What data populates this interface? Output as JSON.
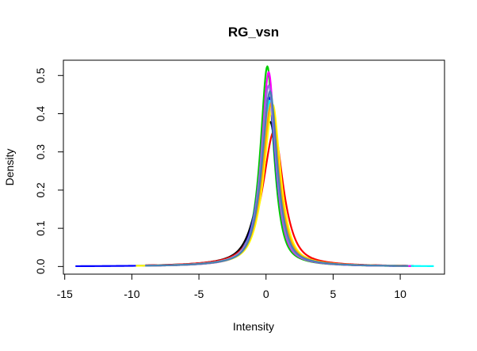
{
  "chart_data": {
    "type": "line",
    "title": "RG_vsn",
    "xlabel": "Intensity",
    "ylabel": "Density",
    "xlim": [
      -15.1,
      13.3
    ],
    "ylim": [
      -0.02,
      0.54
    ],
    "xticks": [
      -15,
      -10,
      -5,
      0,
      5,
      10
    ],
    "xtick_labels": [
      "-15",
      "-10",
      "-5",
      "0",
      "5",
      "10"
    ],
    "yticks": [
      0.0,
      0.1,
      0.2,
      0.3,
      0.4,
      0.5
    ],
    "ytick_labels": [
      "0.0",
      "0.1",
      "0.2",
      "0.3",
      "0.4",
      "0.5"
    ],
    "grid": false,
    "legend": "none",
    "series": [
      {
        "color": "#000000",
        "xmin": -9.0,
        "xmax": 11.0,
        "peak": 0.375,
        "peak_x": 0.3,
        "width_left": 1.0,
        "width_right": 0.85
      },
      {
        "color": "#ff0000",
        "xmin": -9.0,
        "xmax": 10.5,
        "peak": 0.35,
        "peak_x": 0.6,
        "width_left": 1.1,
        "width_right": 0.9
      },
      {
        "color": "#00cd00",
        "xmin": -9.0,
        "xmax": 10.6,
        "peak": 0.52,
        "peak_x": 0.1,
        "width_left": 0.68,
        "width_right": 0.62
      },
      {
        "color": "#0000ff",
        "xmin": -14.2,
        "xmax": 10.8,
        "peak": 0.44,
        "peak_x": 0.2,
        "width_left": 0.8,
        "width_right": 0.7
      },
      {
        "color": "#00ffff",
        "xmin": -9.0,
        "xmax": 12.5,
        "peak": 0.43,
        "peak_x": 0.3,
        "width_left": 0.82,
        "width_right": 0.72
      },
      {
        "color": "#ff00ff",
        "xmin": -9.0,
        "xmax": 10.8,
        "peak": 0.505,
        "peak_x": 0.2,
        "width_left": 0.7,
        "width_right": 0.64
      },
      {
        "color": "#ffff00",
        "xmin": -9.7,
        "xmax": 10.6,
        "peak": 0.42,
        "peak_x": 0.5,
        "width_left": 0.85,
        "width_right": 0.74
      },
      {
        "color": "#bebebe",
        "xmin": -9.0,
        "xmax": 10.6,
        "peak": 0.41,
        "peak_x": 0.3,
        "width_left": 0.86,
        "width_right": 0.75
      },
      {
        "color": "#ffa500",
        "xmin": -9.0,
        "xmax": 10.6,
        "peak": 0.425,
        "peak_x": 0.4,
        "width_left": 0.84,
        "width_right": 0.73
      },
      {
        "color": "#9370db",
        "xmin": -9.0,
        "xmax": 10.6,
        "peak": 0.47,
        "peak_x": 0.2,
        "width_left": 0.75,
        "width_right": 0.68
      },
      {
        "color": "#4682b4",
        "xmin": -9.0,
        "xmax": 10.6,
        "peak": 0.455,
        "peak_x": 0.3,
        "width_left": 0.78,
        "width_right": 0.7
      }
    ]
  }
}
